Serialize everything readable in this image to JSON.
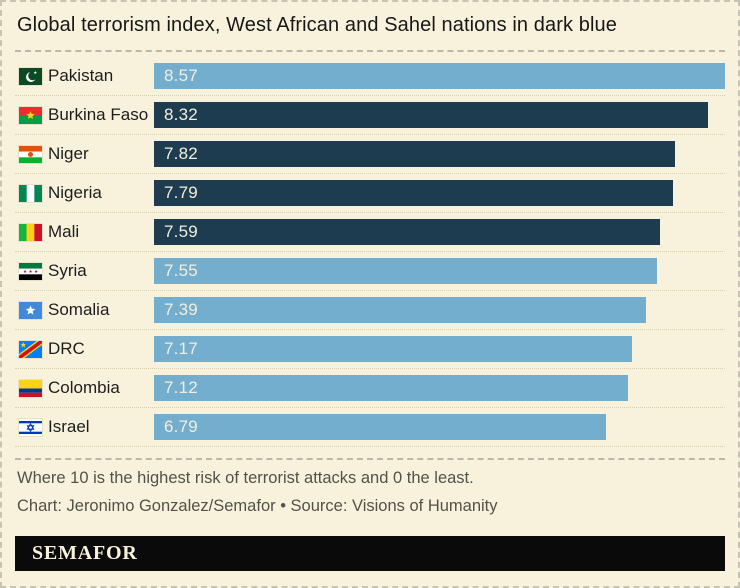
{
  "chart_data": {
    "type": "bar",
    "orientation": "horizontal",
    "title": "Global terrorism index, West African and Sahel nations in dark blue",
    "note": "Where 10 is the highest risk of terrorist attacks and 0 the least.",
    "credit": "Chart: Jeronimo Gonzalez/Semafor • Source: Visions of Humanity",
    "xlim": [
      0,
      8.57
    ],
    "legend": "West African and Sahel nations shown in dark blue; all others in light blue",
    "colors": {
      "highlight_dark_blue": "#1d3c50",
      "default_light_blue": "#73aecf"
    },
    "rows": [
      {
        "country": "Pakistan",
        "value": 8.57,
        "highlighted": false,
        "flag": "pakistan",
        "flag_icon": "flag-pakistan-icon"
      },
      {
        "country": "Burkina Faso",
        "value": 8.32,
        "highlighted": true,
        "flag": "burkina-faso",
        "flag_icon": "flag-burkina-faso-icon"
      },
      {
        "country": "Niger",
        "value": 7.82,
        "highlighted": true,
        "flag": "niger",
        "flag_icon": "flag-niger-icon"
      },
      {
        "country": "Nigeria",
        "value": 7.79,
        "highlighted": true,
        "flag": "nigeria",
        "flag_icon": "flag-nigeria-icon"
      },
      {
        "country": "Mali",
        "value": 7.59,
        "highlighted": true,
        "flag": "mali",
        "flag_icon": "flag-mali-icon"
      },
      {
        "country": "Syria",
        "value": 7.55,
        "highlighted": false,
        "flag": "syria",
        "flag_icon": "flag-syria-icon"
      },
      {
        "country": "Somalia",
        "value": 7.39,
        "highlighted": false,
        "flag": "somalia",
        "flag_icon": "flag-somalia-icon"
      },
      {
        "country": "DRC",
        "value": 7.17,
        "highlighted": false,
        "flag": "drc",
        "flag_icon": "flag-drc-icon"
      },
      {
        "country": "Colombia",
        "value": 7.12,
        "highlighted": false,
        "flag": "colombia",
        "flag_icon": "flag-colombia-icon"
      },
      {
        "country": "Israel",
        "value": 6.79,
        "highlighted": false,
        "flag": "israel",
        "flag_icon": "flag-israel-icon"
      }
    ]
  },
  "brand": {
    "wordmark": "SEMAFOR"
  }
}
